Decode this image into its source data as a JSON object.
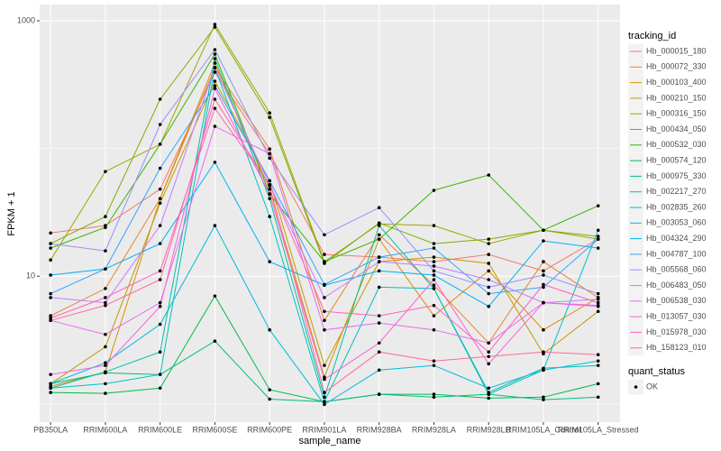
{
  "chart_data": {
    "type": "line",
    "x_label": "sample_name",
    "y_label": "FPKM + 1",
    "log_y": true,
    "grid": true,
    "categories": [
      "PB350LA",
      "RRIM600LA",
      "RRIM600LE",
      "RRIM600SE",
      "RRIM600PE",
      "RRIM901LA",
      "RRIM928BA",
      "RRIM928LA",
      "RRIM928LB",
      "RRIM105LA_Control",
      "RRIM105LA_Stressed"
    ],
    "ylim": [
      0.72,
      1340
    ],
    "yticks": [
      10,
      1000
    ],
    "minor_yticks": [
      1,
      100
    ],
    "legend_title": "tracking_id",
    "legend_position": "right",
    "shape_legend_title": "quant_status",
    "shape_legend_labels": [
      "OK"
    ],
    "point_color": "#000000",
    "panel_color": "#EBEBEB",
    "series": [
      {
        "name": "Hb_000015_180",
        "color": "#F8766D",
        "values": [
          21.8,
          24.9,
          48,
          396,
          91,
          14.8,
          14.1,
          13.0,
          14.8,
          11.0,
          19.5
        ]
      },
      {
        "name": "Hb_000072_330",
        "color": "#EA8331",
        "values": [
          4.9,
          8.0,
          40.5,
          429,
          99,
          4.5,
          21.1,
          8.5,
          3.0,
          13.0,
          6.8
        ]
      },
      {
        "name": "Hb_000103_400",
        "color": "#D89000",
        "values": [
          1.37,
          1.78,
          40.5,
          466,
          48,
          1.62,
          19.5,
          4.9,
          11.0,
          3.8,
          6.8
        ]
      },
      {
        "name": "Hb_000210_150",
        "color": "#C09B00",
        "values": [
          1.44,
          2.8,
          37.3,
          336,
          56,
          2.0,
          13.0,
          14.1,
          12.6,
          2.47,
          5.3
        ]
      },
      {
        "name": "Hb_000316_150",
        "color": "#A3A500",
        "values": [
          13.4,
          66,
          108,
          937,
          190,
          13.0,
          25.7,
          24.9,
          18.0,
          22.9,
          19.5
        ]
      },
      {
        "name": "Hb_000434_050",
        "color": "#7CAE00",
        "values": [
          18.0,
          29.3,
          243,
          892,
          175,
          12.6,
          26.1,
          18.0,
          19.5,
          22.9,
          20.5
        ]
      },
      {
        "name": "Hb_000532_030",
        "color": "#39B600",
        "values": [
          16.6,
          24.1,
          108,
          548,
          44,
          13.0,
          19.5,
          47,
          62,
          22.9,
          35.6
        ]
      },
      {
        "name": "Hb_000574_120",
        "color": "#00BB4E",
        "values": [
          1.23,
          1.21,
          1.33,
          7.0,
          1.29,
          1.04,
          1.19,
          1.19,
          1.11,
          1.13,
          1.44
        ]
      },
      {
        "name": "Hb_000975_330",
        "color": "#00BF7D",
        "values": [
          1.44,
          1.75,
          1.7,
          3.1,
          1.09,
          1.04,
          1.19,
          1.13,
          1.19,
          1.08,
          1.13
        ]
      },
      {
        "name": "Hb_002217_270",
        "color": "#00C1A3",
        "values": [
          1.33,
          1.78,
          2.55,
          505,
          40.5,
          1.13,
          24.9,
          8.0,
          1.23,
          1.9,
          2.0
        ]
      },
      {
        "name": "Hb_002835_260",
        "color": "#00BFC4",
        "values": [
          1.33,
          1.44,
          1.7,
          429,
          29.3,
          1.04,
          8.2,
          8.0,
          1.19,
          1.84,
          22.9
        ]
      },
      {
        "name": "Hb_003053_060",
        "color": "#00BAE0",
        "values": [
          1.44,
          2.1,
          4.2,
          24.9,
          3.8,
          0.99,
          1.84,
          2.0,
          1.33,
          1.84,
          2.17
        ]
      },
      {
        "name": "Hb_004324_290",
        "color": "#00B0F6",
        "values": [
          10.2,
          11.4,
          18.0,
          78,
          13.0,
          8.5,
          11.0,
          10.2,
          5.8,
          18.9,
          16.6
        ]
      },
      {
        "name": "Hb_004787_100",
        "color": "#35A2FF",
        "values": [
          7.3,
          11.4,
          70,
          310,
          56,
          8.6,
          14.1,
          16.6,
          7.3,
          8.2,
          19.5
        ]
      },
      {
        "name": "Hb_005568_060",
        "color": "#9590FF",
        "values": [
          18.0,
          15.8,
          154,
          594,
          84,
          21.1,
          34.4,
          11.0,
          8.2,
          10.2,
          7.3
        ]
      },
      {
        "name": "Hb_006483_050",
        "color": "#C77CFF",
        "values": [
          6.8,
          6.2,
          24.9,
          429,
          52,
          6.8,
          13.0,
          12.0,
          9.4,
          6.2,
          6.6
        ]
      },
      {
        "name": "Hb_006538_030",
        "color": "#E76BF3",
        "values": [
          4.5,
          3.5,
          6.2,
          149,
          91,
          3.8,
          4.3,
          3.8,
          3.0,
          6.2,
          5.8
        ]
      },
      {
        "name": "Hb_013057_030",
        "color": "#FA62DB",
        "values": [
          1.7,
          2.0,
          5.8,
          295,
          44,
          1.56,
          3.0,
          9.4,
          2.06,
          6.2,
          5.9
        ]
      },
      {
        "name": "Hb_015978_030",
        "color": "#FF62BC",
        "values": [
          4.7,
          6.8,
          11.0,
          206,
          52,
          5.3,
          4.9,
          5.9,
          2.55,
          8.6,
          6.2
        ]
      },
      {
        "name": "Hb_158123_010",
        "color": "#FF6A98",
        "values": [
          4.5,
          5.9,
          9.4,
          243,
          51,
          1.23,
          2.55,
          2.17,
          2.35,
          2.55,
          2.43
        ]
      }
    ]
  }
}
